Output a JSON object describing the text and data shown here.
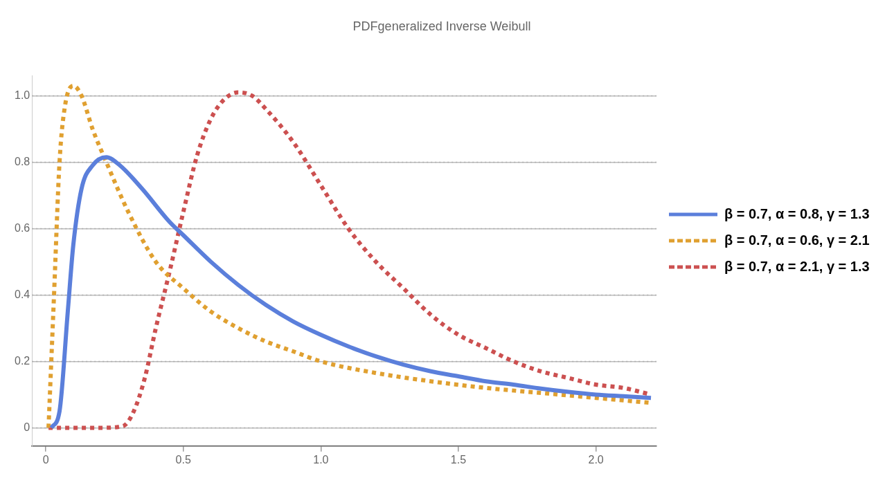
{
  "chart_data": {
    "type": "line",
    "title": "PDFgeneralized Inverse Weibull",
    "xlim": [
      -0.05,
      2.22
    ],
    "ylim": [
      -0.055,
      1.06
    ],
    "xticks": [
      0,
      0.5,
      {
        "value": 1,
        "label": "1.0"
      },
      1.5,
      {
        "value": 2,
        "label": "2.0"
      }
    ],
    "yticks": [
      0,
      0.2,
      0.4,
      0.6,
      0.8,
      {
        "value": 1,
        "label": "1.0"
      }
    ],
    "grid": "y",
    "legend": "right",
    "marker": "none",
    "series": [
      {
        "name": "β = 0.7, α = 0.8, γ = 1.3",
        "color": "#5b7fdb",
        "line_style": "solid",
        "x": [
          0.02,
          0.05,
          0.08,
          0.1,
          0.13,
          0.17,
          0.22,
          0.27,
          0.35,
          0.45,
          0.5,
          0.6,
          0.7,
          0.8,
          0.9,
          1.0,
          1.1,
          1.2,
          1.3,
          1.4,
          1.5,
          1.6,
          1.7,
          1.8,
          1.9,
          2.0,
          2.1,
          2.2
        ],
        "values": [
          0,
          0.05,
          0.35,
          0.55,
          0.72,
          0.79,
          0.815,
          0.79,
          0.72,
          0.62,
          0.58,
          0.5,
          0.43,
          0.37,
          0.32,
          0.28,
          0.245,
          0.215,
          0.19,
          0.17,
          0.155,
          0.14,
          0.13,
          0.118,
          0.108,
          0.1,
          0.095,
          0.09
        ]
      },
      {
        "name": "β = 0.7, α = 0.6, γ = 2.1",
        "color": "#e0a030",
        "line_style": "dotted",
        "x": [
          0.01,
          0.03,
          0.05,
          0.07,
          0.1,
          0.13,
          0.17,
          0.22,
          0.3,
          0.4,
          0.5,
          0.6,
          0.7,
          0.8,
          0.9,
          1.0,
          1.2,
          1.4,
          1.6,
          1.8,
          2.0,
          2.2
        ],
        "values": [
          0,
          0.4,
          0.8,
          0.97,
          1.03,
          1.0,
          0.9,
          0.8,
          0.65,
          0.5,
          0.42,
          0.35,
          0.3,
          0.26,
          0.23,
          0.2,
          0.165,
          0.14,
          0.12,
          0.105,
          0.09,
          0.075
        ]
      },
      {
        "name": "β = 0.7, α = 2.1, γ = 1.3",
        "color": "#cc5050",
        "line_style": "dotted",
        "x": [
          0.01,
          0.2,
          0.28,
          0.32,
          0.36,
          0.4,
          0.45,
          0.5,
          0.55,
          0.6,
          0.65,
          0.7,
          0.75,
          0.8,
          0.9,
          1.0,
          1.1,
          1.2,
          1.3,
          1.4,
          1.5,
          1.6,
          1.7,
          1.8,
          1.9,
          2.0,
          2.1,
          2.2
        ],
        "values": [
          0,
          0,
          0.005,
          0.05,
          0.15,
          0.3,
          0.47,
          0.65,
          0.82,
          0.93,
          0.99,
          1.01,
          1.0,
          0.96,
          0.86,
          0.73,
          0.6,
          0.5,
          0.42,
          0.34,
          0.28,
          0.24,
          0.2,
          0.17,
          0.15,
          0.13,
          0.12,
          0.1
        ]
      }
    ]
  }
}
